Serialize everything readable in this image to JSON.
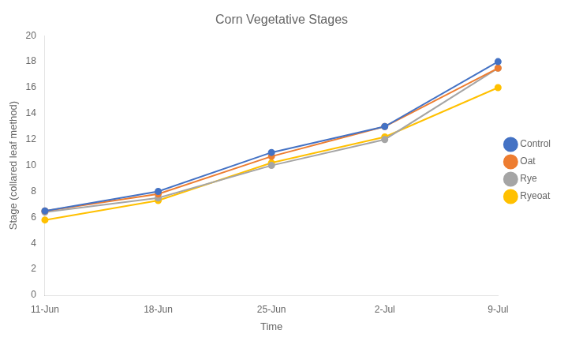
{
  "chart_data": {
    "type": "line",
    "title": "Corn Vegetative Stages",
    "xlabel": "Time",
    "ylabel": "Stage (collared leaf method)",
    "categories": [
      "11-Jun",
      "18-Jun",
      "25-Jun",
      "2-Jul",
      "9-Jul"
    ],
    "series": [
      {
        "name": "Control",
        "color": "#4472C4",
        "marker": "circle",
        "values": [
          6.5,
          8.0,
          11.0,
          13.0,
          18.0
        ]
      },
      {
        "name": "Oat",
        "color": "#ED7D31",
        "marker": "circle",
        "values": [
          6.5,
          7.8,
          10.7,
          13.0,
          17.5
        ]
      },
      {
        "name": "Rye",
        "color": "#A5A5A5",
        "marker": "circle",
        "values": [
          6.4,
          7.5,
          10.0,
          12.0,
          17.5
        ]
      },
      {
        "name": "Ryeoat",
        "color": "#FFC000",
        "marker": "circle",
        "values": [
          5.8,
          7.3,
          10.2,
          12.2,
          16.0
        ]
      }
    ],
    "ylim": [
      0,
      20
    ],
    "yticks": [
      0,
      2,
      4,
      6,
      8,
      10,
      12,
      14,
      16,
      18,
      20
    ],
    "grid": false,
    "legend": "right"
  }
}
